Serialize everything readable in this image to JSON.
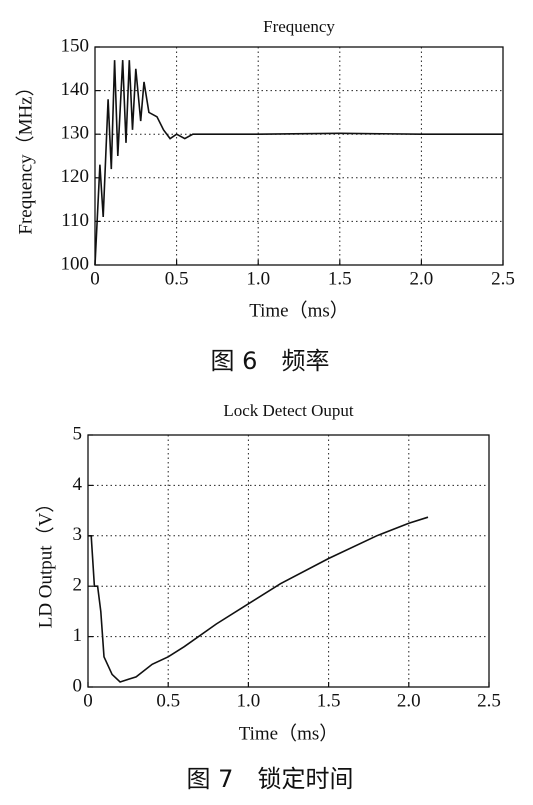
{
  "chart_data": [
    {
      "type": "line",
      "title": "Frequency",
      "x_label": "Time（ms）",
      "y_label": "Frequency（MHz）",
      "caption": "图 6　频率",
      "xlim": [
        0,
        2.5
      ],
      "xticks": [
        0,
        0.5,
        {
          "value": 1,
          "label": "1.0"
        },
        1.5,
        {
          "value": 2,
          "label": "2.0"
        },
        2.5
      ],
      "ylim": [
        100,
        150
      ],
      "yticks": [
        100,
        110,
        120,
        130,
        140,
        150
      ],
      "grid": true,
      "series": [
        {
          "color": "#111111",
          "x": [
            0,
            0.03,
            0.05,
            0.08,
            0.1,
            0.12,
            0.14,
            0.17,
            0.19,
            0.21,
            0.23,
            0.25,
            0.28,
            0.3,
            0.33,
            0.38,
            0.42,
            0.46,
            0.5,
            0.55,
            0.6,
            1.0,
            1.5,
            2.0,
            2.5
          ],
          "values": [
            100,
            123,
            111,
            138,
            122,
            147,
            125,
            147,
            128,
            147,
            131,
            145,
            133,
            142,
            135,
            134,
            131,
            129,
            130,
            129,
            130,
            130,
            130.2,
            130,
            130
          ]
        }
      ]
    },
    {
      "type": "line",
      "title": "Lock Detect Ouput",
      "x_label": "Time（ms）",
      "y_label": "LD Output（V）",
      "caption": "图 7　锁定时间",
      "xlim": [
        0,
        2.5
      ],
      "xticks": [
        0,
        0.5,
        {
          "value": 1,
          "label": "1.0"
        },
        1.5,
        {
          "value": 2,
          "label": "2.0"
        },
        2.5
      ],
      "ylim": [
        0,
        5
      ],
      "yticks": [
        0,
        1,
        2,
        3,
        4,
        5
      ],
      "grid": true,
      "series": [
        {
          "color": "#111111",
          "x": [
            0,
            0.02,
            0.04,
            0.06,
            0.08,
            0.1,
            0.15,
            0.2,
            0.25,
            0.3,
            0.4,
            0.5,
            0.6,
            0.8,
            1.0,
            1.2,
            1.5,
            1.8,
            2.0,
            2.12
          ],
          "values": [
            3,
            3,
            2,
            2,
            1.5,
            0.6,
            0.25,
            0.1,
            0.15,
            0.2,
            0.45,
            0.6,
            0.8,
            1.25,
            1.65,
            2.05,
            2.55,
            3.0,
            3.25,
            3.37
          ]
        }
      ]
    }
  ]
}
